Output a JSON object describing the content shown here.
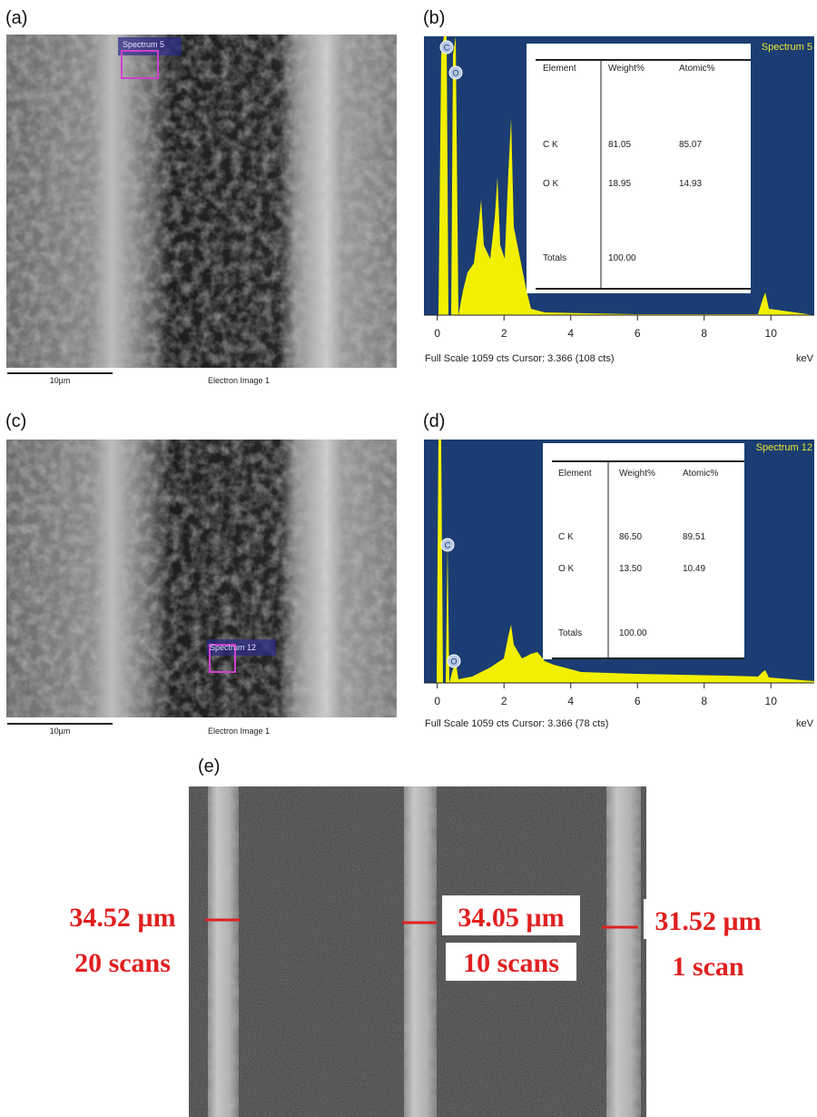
{
  "panels": {
    "a": {
      "label": "(a)",
      "spectrum_box": "Spectrum 5",
      "scale_bar": "10µm",
      "image_caption": "Electron Image 1"
    },
    "b": {
      "label": "(b)",
      "spectrum_name": "Spectrum 5",
      "peaks": [
        "C",
        "O"
      ],
      "table": {
        "header": [
          "Element",
          "Weight%",
          "Atomic%"
        ],
        "rows": [
          [
            "C K",
            "81.05",
            "85.07"
          ],
          [
            "O K",
            "18.95",
            "14.93"
          ]
        ],
        "totals": [
          "Totals",
          "100.00"
        ]
      },
      "xlim": [
        -0.4,
        11.3
      ],
      "xticks": [
        0,
        2,
        4,
        6,
        8,
        10
      ],
      "x_unit": "keV",
      "footer": "Full Scale 1059 cts Cursor: 3.366  (108 cts)"
    },
    "c": {
      "label": "(c)",
      "spectrum_box": "Spectrum 12",
      "scale_bar": "10µm",
      "image_caption": "Electron Image 1"
    },
    "d": {
      "label": "(d)",
      "spectrum_name": "Spectrum 12",
      "peaks": [
        "C",
        "O"
      ],
      "table": {
        "header": [
          "Element",
          "Weight%",
          "Atomic%"
        ],
        "rows": [
          [
            "C K",
            "86.50",
            "89.51"
          ],
          [
            "O K",
            "13.50",
            "10.49"
          ]
        ],
        "totals": [
          "Totals",
          "100.00"
        ]
      },
      "xlim": [
        -0.4,
        11.3
      ],
      "xticks": [
        0,
        2,
        4,
        6,
        8,
        10
      ],
      "x_unit": "keV",
      "footer": "Full Scale 1059 cts Cursor: 3.366  (78 cts)"
    },
    "e": {
      "label": "(e)",
      "measurements": [
        {
          "width": "34.52 µm",
          "scans": "20 scans"
        },
        {
          "width": "34.05 µm",
          "scans": "10 scans"
        },
        {
          "width": "31.52 µm",
          "scans": "1 scan"
        }
      ]
    }
  }
}
